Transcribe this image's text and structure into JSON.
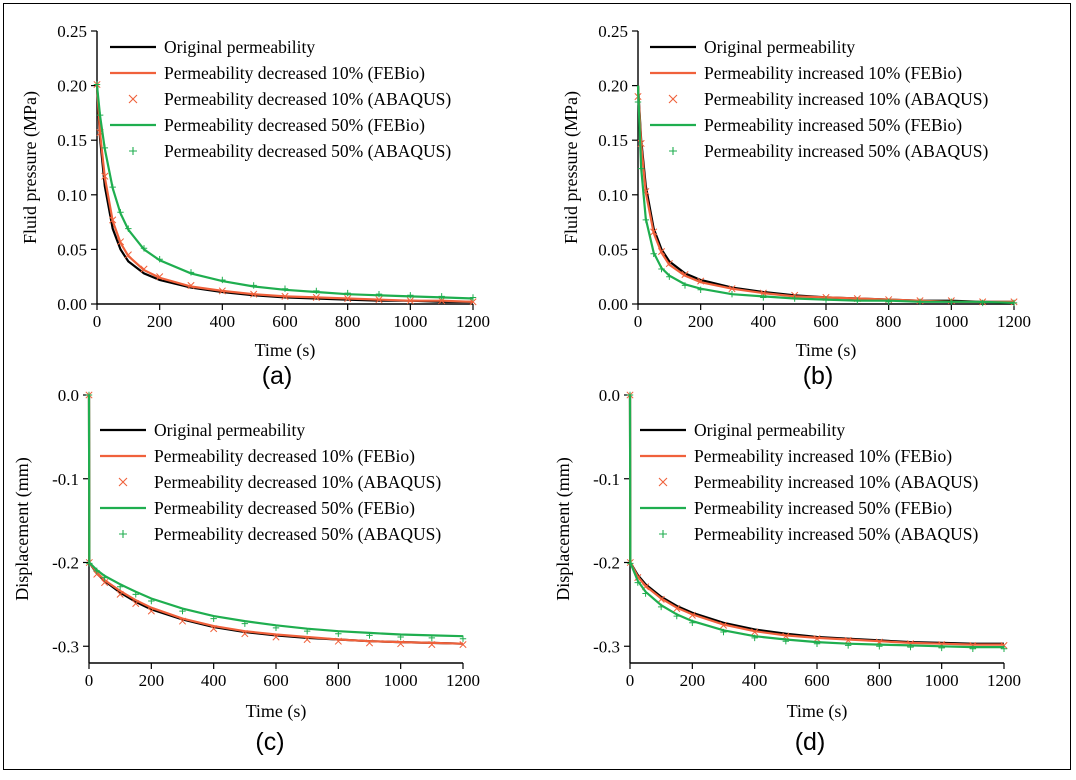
{
  "colors": {
    "original": "#000000",
    "decreased10": "#f0613b",
    "decreased50": "#1fae4f",
    "frame": "#000000"
  },
  "chart_data": [
    {
      "id": "a",
      "type": "line",
      "panel_label": "(a)",
      "xlabel": "Time (s)",
      "ylabel": "Fluid pressure (MPa)",
      "xlim": [
        0,
        1200
      ],
      "ylim": [
        0,
        0.25
      ],
      "xticks": [
        0,
        200,
        400,
        600,
        800,
        1000,
        1200
      ],
      "xtick_labels": [
        "0",
        "200",
        "400",
        "600",
        "800",
        "1000",
        "1200"
      ],
      "yticks": [
        0,
        0.05,
        0.1,
        0.15,
        0.2,
        0.25
      ],
      "ytick_labels": [
        "0.00",
        "0.05",
        "0.10",
        "0.15",
        "0.20",
        "0.25"
      ],
      "legend_position": "top-right",
      "x": [
        0,
        10,
        25,
        50,
        75,
        100,
        150,
        200,
        300,
        400,
        500,
        600,
        700,
        800,
        900,
        1000,
        1100,
        1200
      ],
      "series": [
        {
          "name": "Original permeability",
          "style": "line",
          "color_key": "original",
          "values": [
            0.2,
            0.151,
            0.108,
            0.069,
            0.05,
            0.039,
            0.028,
            0.022,
            0.015,
            0.011,
            0.008,
            0.006,
            0.005,
            0.004,
            0.003,
            0.003,
            0.002,
            0.002
          ]
        },
        {
          "name": "Permeability decreased 10% (FEBio)",
          "style": "line",
          "color_key": "decreased10",
          "values": [
            0.2,
            0.156,
            0.116,
            0.076,
            0.056,
            0.044,
            0.031,
            0.024,
            0.016,
            0.012,
            0.009,
            0.007,
            0.006,
            0.005,
            0.004,
            0.003,
            0.003,
            0.002
          ]
        },
        {
          "name": "Permeability decreased 10% (ABAQUS)",
          "style": "x",
          "color_key": "decreased10",
          "values": [
            0.201,
            0.157,
            0.117,
            0.077,
            0.057,
            0.045,
            0.032,
            0.025,
            0.017,
            0.012,
            0.009,
            0.007,
            0.006,
            0.005,
            0.004,
            0.003,
            0.003,
            0.002
          ]
        },
        {
          "name": "Permeability decreased 50% (FEBio)",
          "style": "line",
          "color_key": "decreased50",
          "values": [
            0.2,
            0.172,
            0.142,
            0.106,
            0.083,
            0.068,
            0.05,
            0.04,
            0.028,
            0.021,
            0.016,
            0.013,
            0.011,
            0.009,
            0.008,
            0.007,
            0.006,
            0.005
          ]
        },
        {
          "name": "Permeability decreased 50% (ABAQUS)",
          "style": "+",
          "color_key": "decreased50",
          "values": [
            0.201,
            0.173,
            0.143,
            0.107,
            0.084,
            0.069,
            0.051,
            0.041,
            0.029,
            0.022,
            0.017,
            0.014,
            0.012,
            0.01,
            0.009,
            0.008,
            0.007,
            0.006
          ]
        }
      ]
    },
    {
      "id": "b",
      "type": "line",
      "panel_label": "(b)",
      "xlabel": "Time (s)",
      "ylabel": "Fluid pressure (MPa)",
      "xlim": [
        0,
        1200
      ],
      "ylim": [
        0,
        0.25
      ],
      "xticks": [
        0,
        200,
        400,
        600,
        800,
        1000,
        1200
      ],
      "xtick_labels": [
        "0",
        "200",
        "400",
        "600",
        "800",
        "1000",
        "1200"
      ],
      "yticks": [
        0,
        0.05,
        0.1,
        0.15,
        0.2,
        0.25
      ],
      "ytick_labels": [
        "0.00",
        "0.05",
        "0.10",
        "0.15",
        "0.20",
        "0.25"
      ],
      "legend_position": "top-right",
      "x": [
        0,
        10,
        25,
        50,
        75,
        100,
        150,
        200,
        300,
        400,
        500,
        600,
        700,
        800,
        900,
        1000,
        1100,
        1200
      ],
      "series": [
        {
          "name": "Original permeability",
          "style": "line",
          "color_key": "original",
          "values": [
            0.2,
            0.151,
            0.108,
            0.069,
            0.05,
            0.039,
            0.028,
            0.022,
            0.015,
            0.011,
            0.008,
            0.006,
            0.005,
            0.004,
            0.003,
            0.003,
            0.002,
            0.002
          ]
        },
        {
          "name": "Permeability increased 10% (FEBio)",
          "style": "line",
          "color_key": "decreased10",
          "values": [
            0.2,
            0.147,
            0.102,
            0.065,
            0.047,
            0.036,
            0.026,
            0.02,
            0.014,
            0.01,
            0.007,
            0.006,
            0.005,
            0.004,
            0.003,
            0.002,
            0.002,
            0.002
          ]
        },
        {
          "name": "Permeability increased 10% (ABAQUS)",
          "style": "x",
          "color_key": "decreased10",
          "values": [
            0.19,
            0.147,
            0.103,
            0.066,
            0.048,
            0.037,
            0.027,
            0.021,
            0.014,
            0.01,
            0.008,
            0.006,
            0.005,
            0.004,
            0.003,
            0.003,
            0.002,
            0.002
          ]
        },
        {
          "name": "Permeability increased 50% (FEBio)",
          "style": "line",
          "color_key": "decreased50",
          "values": [
            0.2,
            0.125,
            0.078,
            0.047,
            0.033,
            0.026,
            0.018,
            0.014,
            0.009,
            0.007,
            0.005,
            0.004,
            0.003,
            0.003,
            0.002,
            0.002,
            0.002,
            0.001
          ]
        },
        {
          "name": "Permeability increased 50% (ABAQUS)",
          "style": "+",
          "color_key": "decreased50",
          "values": [
            0.185,
            0.124,
            0.077,
            0.046,
            0.032,
            0.025,
            0.017,
            0.013,
            0.009,
            0.006,
            0.005,
            0.004,
            0.003,
            0.002,
            0.002,
            0.002,
            0.001,
            0.001
          ]
        }
      ]
    },
    {
      "id": "c",
      "type": "line",
      "panel_label": "(c)",
      "xlabel": "Time (s)",
      "ylabel": "Displacement (mm)",
      "xlim": [
        0,
        1200
      ],
      "ylim": [
        -0.32,
        0
      ],
      "xticks": [
        0,
        200,
        400,
        600,
        800,
        1000,
        1200
      ],
      "xtick_labels": [
        "0",
        "200",
        "400",
        "600",
        "800",
        "1000",
        "1200"
      ],
      "yticks": [
        0,
        -0.1,
        -0.2,
        -0.3
      ],
      "ytick_labels": [
        "0.0",
        "-0.1",
        "-0.2",
        "-0.3"
      ],
      "legend_position": "top-right",
      "x": [
        0,
        1,
        25,
        50,
        100,
        150,
        200,
        300,
        400,
        500,
        600,
        700,
        800,
        900,
        1000,
        1100,
        1200
      ],
      "series": [
        {
          "name": "Original permeability",
          "style": "line",
          "color_key": "original",
          "values": [
            0,
            -0.2,
            -0.213,
            -0.222,
            -0.236,
            -0.247,
            -0.256,
            -0.268,
            -0.277,
            -0.283,
            -0.287,
            -0.29,
            -0.292,
            -0.294,
            -0.295,
            -0.296,
            -0.297
          ]
        },
        {
          "name": "Permeability decreased 10% (FEBio)",
          "style": "line",
          "color_key": "decreased10",
          "values": [
            0,
            -0.2,
            -0.212,
            -0.221,
            -0.234,
            -0.245,
            -0.254,
            -0.267,
            -0.276,
            -0.282,
            -0.286,
            -0.289,
            -0.292,
            -0.294,
            -0.295,
            -0.296,
            -0.297
          ]
        },
        {
          "name": "Permeability decreased 10% (ABAQUS)",
          "style": "x",
          "color_key": "decreased10",
          "values": [
            0,
            -0.2,
            -0.214,
            -0.224,
            -0.238,
            -0.249,
            -0.258,
            -0.27,
            -0.279,
            -0.285,
            -0.289,
            -0.292,
            -0.294,
            -0.296,
            -0.297,
            -0.298,
            -0.298
          ]
        },
        {
          "name": "Permeability decreased 50% (FEBio)",
          "style": "line",
          "color_key": "decreased50",
          "values": [
            0,
            -0.2,
            -0.209,
            -0.216,
            -0.226,
            -0.235,
            -0.243,
            -0.255,
            -0.264,
            -0.27,
            -0.275,
            -0.279,
            -0.282,
            -0.284,
            -0.286,
            -0.287,
            -0.288
          ]
        },
        {
          "name": "Permeability decreased 50% (ABAQUS)",
          "style": "+",
          "color_key": "decreased50",
          "values": [
            0,
            -0.201,
            -0.21,
            -0.218,
            -0.229,
            -0.238,
            -0.246,
            -0.258,
            -0.267,
            -0.273,
            -0.278,
            -0.282,
            -0.285,
            -0.287,
            -0.289,
            -0.29,
            -0.291
          ]
        }
      ]
    },
    {
      "id": "d",
      "type": "line",
      "panel_label": "(d)",
      "xlabel": "Time (s)",
      "ylabel": "Displacement (mm)",
      "xlim": [
        0,
        1200
      ],
      "ylim": [
        -0.32,
        0
      ],
      "xticks": [
        0,
        200,
        400,
        600,
        800,
        1000,
        1200
      ],
      "xtick_labels": [
        "0",
        "200",
        "400",
        "600",
        "800",
        "1000",
        "1200"
      ],
      "yticks": [
        0,
        -0.1,
        -0.2,
        -0.3
      ],
      "ytick_labels": [
        "0.0",
        "-0.1",
        "-0.2",
        "-0.3"
      ],
      "legend_position": "top-right",
      "x": [
        0,
        1,
        25,
        50,
        100,
        150,
        200,
        300,
        400,
        500,
        600,
        700,
        800,
        900,
        1000,
        1100,
        1200
      ],
      "series": [
        {
          "name": "Original permeability",
          "style": "line",
          "color_key": "original",
          "values": [
            0,
            -0.2,
            -0.215,
            -0.226,
            -0.241,
            -0.252,
            -0.26,
            -0.272,
            -0.28,
            -0.285,
            -0.289,
            -0.291,
            -0.293,
            -0.295,
            -0.296,
            -0.297,
            -0.297
          ]
        },
        {
          "name": "Permeability increased 10% (FEBio)",
          "style": "line",
          "color_key": "decreased10",
          "values": [
            0,
            -0.2,
            -0.217,
            -0.228,
            -0.243,
            -0.254,
            -0.262,
            -0.274,
            -0.282,
            -0.287,
            -0.29,
            -0.292,
            -0.294,
            -0.296,
            -0.297,
            -0.298,
            -0.298
          ]
        },
        {
          "name": "Permeability increased 10% (ABAQUS)",
          "style": "x",
          "color_key": "decreased10",
          "values": [
            0,
            -0.2,
            -0.218,
            -0.229,
            -0.244,
            -0.255,
            -0.263,
            -0.275,
            -0.283,
            -0.288,
            -0.291,
            -0.293,
            -0.295,
            -0.297,
            -0.298,
            -0.299,
            -0.299
          ]
        },
        {
          "name": "Permeability increased 50% (FEBio)",
          "style": "line",
          "color_key": "decreased50",
          "values": [
            0,
            -0.2,
            -0.222,
            -0.235,
            -0.251,
            -0.262,
            -0.27,
            -0.281,
            -0.288,
            -0.292,
            -0.295,
            -0.297,
            -0.298,
            -0.299,
            -0.3,
            -0.301,
            -0.301
          ]
        },
        {
          "name": "Permeability increased 50% (ABAQUS)",
          "style": "+",
          "color_key": "decreased50",
          "values": [
            0,
            -0.201,
            -0.224,
            -0.237,
            -0.253,
            -0.264,
            -0.272,
            -0.283,
            -0.29,
            -0.294,
            -0.297,
            -0.299,
            -0.3,
            -0.301,
            -0.302,
            -0.303,
            -0.303
          ]
        }
      ]
    }
  ]
}
